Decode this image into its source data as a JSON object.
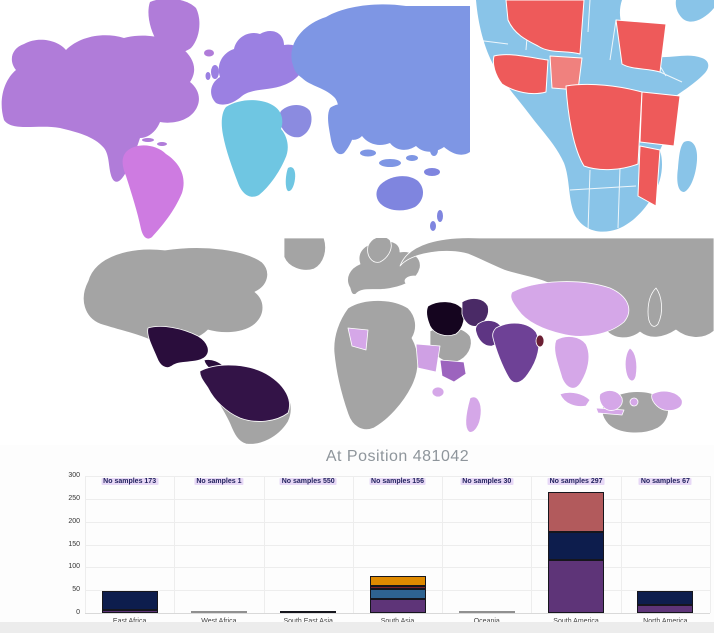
{
  "maps": {
    "continents": {
      "north_america": "#B07CD9",
      "greenland": "#B07CD9",
      "south_america": "#CE7BE1",
      "europe": "#9B80E2",
      "asia": "#7E96E4",
      "middle_east": "#8B8BE0",
      "africa": "#6FC6E2",
      "australia": "#7F85DF"
    },
    "africa_map": {
      "base_color": "#89C4E8",
      "endemic_color": "#EE5A5A",
      "nigeria_color": "#F0817E",
      "border_color": "#FFFFFF"
    },
    "choropleth": {
      "default_color": "#A4A4A4",
      "border_color": "#FFFFFF",
      "highlights": {
        "mexico": "#2A0D3C",
        "northern_south_america": "#331347",
        "iran": "#15051F",
        "afghanistan": "#4A2A66",
        "pakistan": "#5E3583",
        "india": "#6E4196",
        "bangladesh": "#6B1F33",
        "china": "#D5A7E8",
        "southeast_asia": "#D5A7E8",
        "indonesia": "#D5A7E8",
        "philippines": "#D5A7E8",
        "papua_new_guinea": "#D5A7E8",
        "mauritania": "#D5A7E8",
        "sudan": "#CFA0E4",
        "ethiopia": "#9C64BE",
        "uganda": "#D5A7E8",
        "madagascar": "#D5A7E8"
      }
    }
  },
  "chart_data": {
    "type": "bar",
    "stacked": true,
    "title": "At Position 481042",
    "categories": [
      "East Africa",
      "West Africa",
      "South East Asia",
      "South Asia",
      "Oceania",
      "South America",
      "North America"
    ],
    "sample_labels": [
      "No samples 173",
      "No samples 1",
      "No samples 550",
      "No samples 156",
      "No samples 30",
      "No samples 297",
      "No samples 67"
    ],
    "series": [
      {
        "name": "purple",
        "color": "#5E3478",
        "border": "#16161d",
        "values": [
          6,
          0,
          0,
          31,
          0,
          116,
          18
        ]
      },
      {
        "name": "navy",
        "color": "#0D1D4D",
        "border": "#16161d",
        "values": [
          42,
          0,
          4,
          0,
          0,
          61,
          30
        ]
      },
      {
        "name": "steelblue",
        "color": "#2E6391",
        "border": "#16161d",
        "values": [
          0,
          0,
          0,
          22,
          0,
          0,
          0
        ]
      },
      {
        "name": "darkred",
        "color": "#7A222B",
        "border": "#16161d",
        "values": [
          0,
          0,
          0,
          6,
          0,
          0,
          0
        ]
      },
      {
        "name": "orange",
        "color": "#DF8A00",
        "border": "#16161d",
        "values": [
          0,
          0,
          0,
          21,
          0,
          0,
          0
        ]
      },
      {
        "name": "rose",
        "color": "#B25A5C",
        "border": "#16161d",
        "values": [
          0,
          0,
          0,
          0,
          0,
          87,
          0
        ]
      },
      {
        "name": "gray",
        "color": "#C6C6C6",
        "border": "#909090",
        "values": [
          0,
          2,
          0,
          0,
          2,
          0,
          0
        ]
      }
    ],
    "ylim": [
      0,
      300
    ],
    "yticks": [
      0,
      50,
      100,
      150,
      200,
      250,
      300
    ],
    "grid": true,
    "legend": "none"
  }
}
